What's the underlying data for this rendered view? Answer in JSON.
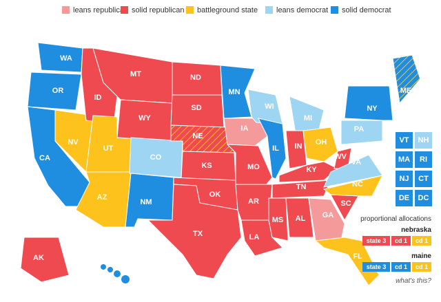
{
  "legend": [
    {
      "label": "leans republican",
      "color": "#f59a9a"
    },
    {
      "label": "solid republican",
      "color": "#ef4a4f"
    },
    {
      "label": "battleground state",
      "color": "#fdc21c"
    },
    {
      "label": "leans democrat",
      "color": "#9ed5f2"
    },
    {
      "label": "solid democrat",
      "color": "#1f8ee0"
    }
  ],
  "states": [
    {
      "label": "WA",
      "category": 4
    },
    {
      "label": "OR",
      "category": 4
    },
    {
      "label": "CA",
      "category": 4
    },
    {
      "label": "NV",
      "category": 2
    },
    {
      "label": "ID",
      "category": 1
    },
    {
      "label": "MT",
      "category": 1
    },
    {
      "label": "WY",
      "category": 1
    },
    {
      "label": "UT",
      "category": 2
    },
    {
      "label": "AZ",
      "category": 2
    },
    {
      "label": "CO",
      "category": 3
    },
    {
      "label": "NM",
      "category": 4
    },
    {
      "label": "ND",
      "category": 1
    },
    {
      "label": "SD",
      "category": 1
    },
    {
      "label": "NE",
      "category": 1,
      "hatch": 2
    },
    {
      "label": "KS",
      "category": 1
    },
    {
      "label": "OK",
      "category": 1
    },
    {
      "label": "TX",
      "category": 1
    },
    {
      "label": "MN",
      "category": 4
    },
    {
      "label": "IA",
      "category": 0
    },
    {
      "label": "MO",
      "category": 1
    },
    {
      "label": "AR",
      "category": 1
    },
    {
      "label": "LA",
      "category": 1
    },
    {
      "label": "WI",
      "category": 3
    },
    {
      "label": "IL",
      "category": 4
    },
    {
      "label": "MS",
      "category": 1
    },
    {
      "label": "AL",
      "category": 1
    },
    {
      "label": "MI",
      "category": 3
    },
    {
      "label": "IN",
      "category": 1
    },
    {
      "label": "KY",
      "category": 1
    },
    {
      "label": "TN",
      "category": 1
    },
    {
      "label": "OH",
      "category": 2
    },
    {
      "label": "WV",
      "category": 1
    },
    {
      "label": "VA",
      "category": 3
    },
    {
      "label": "NC",
      "category": 2
    },
    {
      "label": "SC",
      "category": 1
    },
    {
      "label": "GA",
      "category": 0
    },
    {
      "label": "FL",
      "category": 2
    },
    {
      "label": "PA",
      "category": 3
    },
    {
      "label": "NY",
      "category": 4
    },
    {
      "label": "ME",
      "category": 4,
      "hatch": 2
    },
    {
      "label": "AK",
      "category": 1
    }
  ],
  "small_states": [
    {
      "label": "VT",
      "category": 4
    },
    {
      "label": "NH",
      "category": 3
    },
    {
      "label": "MA",
      "category": 4
    },
    {
      "label": "RI",
      "category": 4
    },
    {
      "label": "NJ",
      "category": 4
    },
    {
      "label": "CT",
      "category": 4
    },
    {
      "label": "DE",
      "category": 4
    },
    {
      "label": "DC",
      "category": 4
    }
  ],
  "allocations": {
    "title": "proportional allocations",
    "groups": [
      {
        "name": "nebraska",
        "chips": [
          {
            "label": "state 3",
            "category": 1
          },
          {
            "label": "cd 1",
            "category": 1
          },
          {
            "label": "cd 1",
            "category": 2
          }
        ]
      },
      {
        "name": "maine",
        "chips": [
          {
            "label": "state 3",
            "category": 4
          },
          {
            "label": "cd 1",
            "category": 4
          },
          {
            "label": "cd 1",
            "category": 2
          }
        ]
      }
    ],
    "link": "what's this?"
  }
}
